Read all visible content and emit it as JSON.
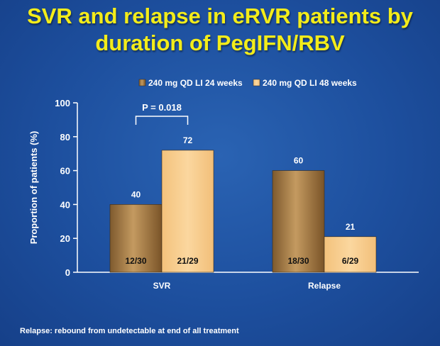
{
  "title_line1": "SVR and relapse in eRVR patients by",
  "title_line2": "duration of PegIFN/RBV",
  "footnote": "Relapse: rebound from undetectable at end of all treatment",
  "colors": {
    "background": "#1d4f9e",
    "title": "#f3ec1a",
    "series1": "#a77c48",
    "series2": "#f8cd8e",
    "text": "#ffffff"
  },
  "chart_data": {
    "type": "bar",
    "ylabel": "Proportion of patients (%)",
    "xlabel": "",
    "ylim": [
      0,
      100
    ],
    "yticks": [
      0,
      20,
      40,
      60,
      80,
      100
    ],
    "grid": false,
    "legend_position": "top",
    "categories": [
      "SVR",
      "Relapse"
    ],
    "series": [
      {
        "name": "240 mg QD LI 24 weeks",
        "values": [
          40,
          60
        ],
        "fractions": [
          "12/30",
          "18/30"
        ]
      },
      {
        "name": "240 mg QD LI 48 weeks",
        "values": [
          72,
          21
        ],
        "fractions": [
          "21/29",
          "6/29"
        ]
      }
    ],
    "annotations": [
      {
        "text": "P = 0.018",
        "category": "SVR"
      }
    ]
  }
}
